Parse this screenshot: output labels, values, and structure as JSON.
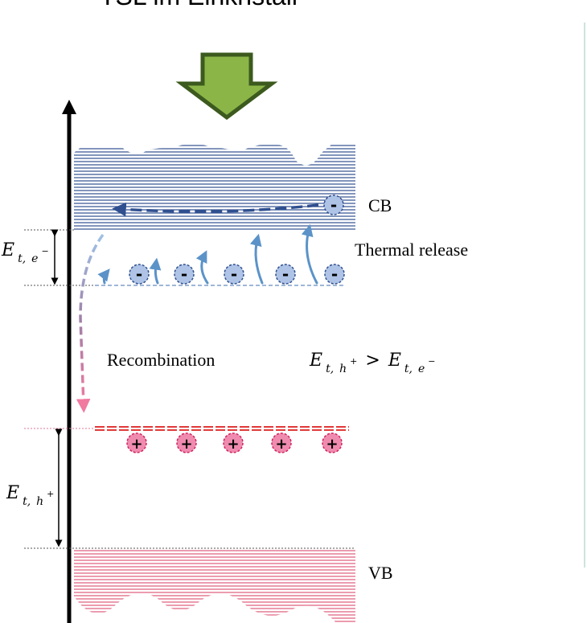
{
  "title": "TSL im Einkristall",
  "labels": {
    "cb": "CB",
    "vb": "VB",
    "thermal_release": "Thermal release",
    "recombination": "Recombination"
  },
  "math": {
    "E": "E",
    "t": "t,",
    "e_minus": "e",
    "h_plus": "h",
    "minus_sup": "−",
    "plus_sup": "+",
    "greater_than": ">"
  },
  "charges": {
    "electron": "-",
    "hole": "+"
  },
  "colors": {
    "conduction_band": "#2f4f8f",
    "valence_band": "#e05a7a",
    "electron_fill": "#aec3e6",
    "electron_stroke": "#2f4f8f",
    "hole_fill": "#f08bb0",
    "hole_stroke": "#d0245c",
    "trap_electron": "#9fb7d8",
    "trap_hole": "#e03a3a",
    "arrow_blue": "#5b93c8",
    "excitation_arrow_fill": "#8cb548",
    "excitation_arrow_stroke": "#3c5a1e",
    "axis": "#000000"
  },
  "icons": {
    "excitation": "down-arrow-icon",
    "electron": "electron-icon",
    "hole": "hole-icon"
  }
}
